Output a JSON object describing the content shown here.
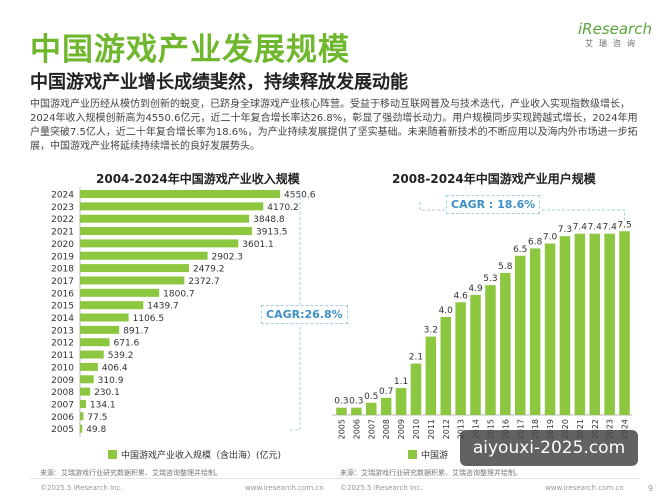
{
  "header": {
    "title": "中国游戏产业发展规模",
    "subtitle": "中国游戏产业增长成绩斐然，持续释放发展动能",
    "intro": "中国游戏产业历经从模仿到创新的蜕变，已跻身全球游戏产业核心阵营。受益于移动互联网普及与技术迭代，产业收入实现指数级增长，2024年收入规模创新高为4550.6亿元，近二十年复合增长率达26.8%，彰显了强劲增长动力。用户规模同步实现跨越式增长，2024年用户量突破7.5亿人，近二十年复合增长率为18.6%，为产业持续发展提供了坚实基础。未来随着新技术的不断应用以及海内外市场进一步拓展，中国游戏产业将延续持续增长的良好发展势头。"
  },
  "logo": {
    "brand": "iResearch",
    "cn": "艾瑞咨询"
  },
  "chart_data": [
    {
      "type": "bar",
      "orientation": "horizontal",
      "title": "2004-2024年中国游戏产业收入规模",
      "categories": [
        "2024",
        "2023",
        "2022",
        "2021",
        "2020",
        "2019",
        "2018",
        "2017",
        "2016",
        "2015",
        "2014",
        "2013",
        "2012",
        "2011",
        "2010",
        "2009",
        "2008",
        "2007",
        "2006",
        "2005"
      ],
      "values": [
        4550.6,
        4170.2,
        3848.8,
        3913.5,
        3601.1,
        2902.3,
        2479.2,
        2372.7,
        1800.7,
        1439.7,
        1106.5,
        891.7,
        671.6,
        539.2,
        406.4,
        310.9,
        230.1,
        134.1,
        77.5,
        49.8
      ],
      "value_labels": [
        "4550.6",
        "4170.2",
        "3848.8",
        "3913.5",
        "3601.1",
        "2902.3",
        "2479.2",
        "2372.7",
        "1800.7",
        "1439.7",
        "1106.5",
        "891.7",
        "671.6",
        "539.2",
        "406.4",
        "310.9",
        "230.1",
        "134.1",
        "77.5",
        "49.8"
      ],
      "legend": "中国游戏产业收入规模（含出海）(亿元)",
      "annotation": "CAGR:26.8%",
      "color": "#8dc63f"
    },
    {
      "type": "bar",
      "title": "2008-2024年中国游戏产业用户规模",
      "categories": [
        "2005",
        "2006",
        "2007",
        "2008",
        "2009",
        "2010",
        "2011",
        "2012",
        "2013",
        "2014",
        "2015",
        "2016",
        "2017",
        "2018",
        "2019",
        "2020",
        "2021",
        "2022",
        "2023",
        "2024"
      ],
      "values": [
        0.3,
        0.3,
        0.5,
        0.7,
        1.1,
        2.1,
        3.2,
        4.0,
        4.6,
        4.9,
        5.3,
        5.8,
        6.5,
        6.8,
        7.0,
        7.3,
        7.4,
        7.4,
        7.4,
        7.5
      ],
      "value_labels": [
        "0.3",
        "0.3",
        "0.5",
        "0.7",
        "1.1",
        "2.1",
        "3.2",
        "4.0",
        "4.6",
        "4.9",
        "5.3",
        "5.8",
        "6.5",
        "6.8",
        "7.0",
        "7.3",
        "7.4",
        "7.4",
        "7.4",
        "7.5"
      ],
      "legend": "中国游",
      "annotation": "CAGR : 18.6%",
      "color": "#8dc63f"
    }
  ],
  "sources": {
    "left": "来源：艾瑞游戏行业研究数据积累、艾瑞咨询整理并绘制。",
    "right": "来源：艾瑞游戏行业研究数据积累、艾瑞咨询整理并绘制。"
  },
  "footer": {
    "copyright_left": "©2025.5 iResearch Inc.",
    "url_left": "www.iresearch.com.cn",
    "copyright_right": "©2025.5 iResearch Inc.",
    "url_right": "www.iresearch.com.cn",
    "page": "9"
  },
  "watermark": "aiyouxi-2025.com"
}
